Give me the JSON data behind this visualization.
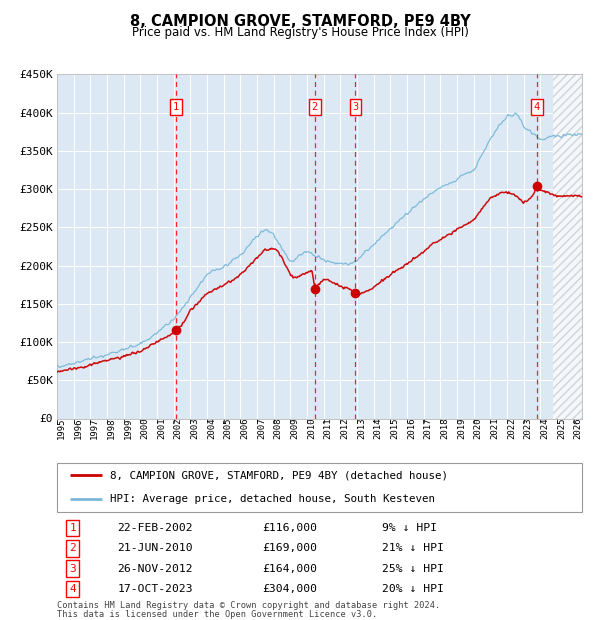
{
  "title": "8, CAMPION GROVE, STAMFORD, PE9 4BY",
  "subtitle": "Price paid vs. HM Land Registry's House Price Index (HPI)",
  "plot_bg_color": "#dce9f5",
  "hpi_line_color": "#7ab8d8",
  "price_line_color": "#cc0000",
  "marker_color": "#cc0000",
  "ylim": [
    0,
    450000
  ],
  "yticks": [
    0,
    50000,
    100000,
    150000,
    200000,
    250000,
    300000,
    350000,
    400000,
    450000
  ],
  "ytick_labels": [
    "£0",
    "£50K",
    "£100K",
    "£150K",
    "£200K",
    "£250K",
    "£300K",
    "£350K",
    "£400K",
    "£450K"
  ],
  "transactions": [
    {
      "num": 1,
      "date_label": "22-FEB-2002",
      "price": 116000,
      "year": 2002.13,
      "pct": "9%",
      "direction": "↓"
    },
    {
      "num": 2,
      "date_label": "21-JUN-2010",
      "price": 169000,
      "year": 2010.47,
      "pct": "21%",
      "direction": "↓"
    },
    {
      "num": 3,
      "date_label": "26-NOV-2012",
      "price": 164000,
      "year": 2012.9,
      "pct": "25%",
      "direction": "↓"
    },
    {
      "num": 4,
      "date_label": "17-OCT-2023",
      "price": 304000,
      "year": 2023.79,
      "pct": "20%",
      "direction": "↓"
    }
  ],
  "legend_label_price": "8, CAMPION GROVE, STAMFORD, PE9 4BY (detached house)",
  "legend_label_hpi": "HPI: Average price, detached house, South Kesteven",
  "footer_line1": "Contains HM Land Registry data © Crown copyright and database right 2024.",
  "footer_line2": "This data is licensed under the Open Government Licence v3.0.",
  "xmin": 1995.0,
  "xmax": 2026.5,
  "hatch_start": 2024.79,
  "hpi_keypoints": [
    [
      1995.0,
      68000
    ],
    [
      1996.0,
      72000
    ],
    [
      1997.0,
      78000
    ],
    [
      1998.0,
      83000
    ],
    [
      1999.0,
      90000
    ],
    [
      2000.0,
      98000
    ],
    [
      2001.0,
      112000
    ],
    [
      2002.0,
      130000
    ],
    [
      2003.0,
      158000
    ],
    [
      2004.0,
      188000
    ],
    [
      2005.0,
      198000
    ],
    [
      2006.0,
      213000
    ],
    [
      2007.0,
      238000
    ],
    [
      2007.5,
      248000
    ],
    [
      2008.0,
      240000
    ],
    [
      2008.5,
      222000
    ],
    [
      2009.0,
      205000
    ],
    [
      2009.5,
      212000
    ],
    [
      2010.0,
      218000
    ],
    [
      2010.5,
      212000
    ],
    [
      2011.0,
      207000
    ],
    [
      2011.5,
      205000
    ],
    [
      2012.0,
      202000
    ],
    [
      2012.5,
      201000
    ],
    [
      2013.0,
      206000
    ],
    [
      2013.5,
      218000
    ],
    [
      2014.0,
      228000
    ],
    [
      2014.5,
      238000
    ],
    [
      2015.0,
      248000
    ],
    [
      2015.5,
      258000
    ],
    [
      2016.0,
      268000
    ],
    [
      2016.5,
      278000
    ],
    [
      2017.0,
      287000
    ],
    [
      2017.5,
      295000
    ],
    [
      2018.0,
      302000
    ],
    [
      2018.5,
      307000
    ],
    [
      2019.0,
      312000
    ],
    [
      2019.5,
      320000
    ],
    [
      2020.0,
      325000
    ],
    [
      2020.5,
      345000
    ],
    [
      2021.0,
      365000
    ],
    [
      2021.5,
      382000
    ],
    [
      2022.0,
      395000
    ],
    [
      2022.5,
      398000
    ],
    [
      2022.8,
      392000
    ],
    [
      2023.0,
      382000
    ],
    [
      2023.5,
      372000
    ],
    [
      2024.0,
      365000
    ],
    [
      2024.5,
      368000
    ],
    [
      2025.0,
      370000
    ],
    [
      2026.0,
      371000
    ],
    [
      2026.5,
      372000
    ]
  ],
  "price_keypoints": [
    [
      1995.0,
      62000
    ],
    [
      1996.0,
      65000
    ],
    [
      1997.0,
      70000
    ],
    [
      1998.0,
      76000
    ],
    [
      1999.0,
      81000
    ],
    [
      2000.0,
      88000
    ],
    [
      2001.0,
      100000
    ],
    [
      2002.0,
      112000
    ],
    [
      2002.13,
      116000
    ],
    [
      2002.5,
      122000
    ],
    [
      2003.0,
      142000
    ],
    [
      2004.0,
      164000
    ],
    [
      2005.0,
      174000
    ],
    [
      2006.0,
      188000
    ],
    [
      2007.0,
      210000
    ],
    [
      2007.5,
      222000
    ],
    [
      2008.0,
      222000
    ],
    [
      2008.3,
      218000
    ],
    [
      2008.7,
      202000
    ],
    [
      2009.0,
      188000
    ],
    [
      2009.3,
      184000
    ],
    [
      2009.7,
      188000
    ],
    [
      2010.0,
      192000
    ],
    [
      2010.3,
      193000
    ],
    [
      2010.47,
      169000
    ],
    [
      2010.65,
      175000
    ],
    [
      2010.9,
      180000
    ],
    [
      2011.2,
      182000
    ],
    [
      2011.5,
      178000
    ],
    [
      2012.0,
      173000
    ],
    [
      2012.5,
      170000
    ],
    [
      2012.9,
      164000
    ],
    [
      2013.1,
      162000
    ],
    [
      2013.5,
      166000
    ],
    [
      2014.0,
      172000
    ],
    [
      2014.5,
      180000
    ],
    [
      2015.0,
      188000
    ],
    [
      2015.5,
      195000
    ],
    [
      2016.0,
      202000
    ],
    [
      2016.5,
      210000
    ],
    [
      2017.0,
      218000
    ],
    [
      2017.5,
      228000
    ],
    [
      2018.0,
      234000
    ],
    [
      2018.5,
      240000
    ],
    [
      2019.0,
      247000
    ],
    [
      2019.5,
      254000
    ],
    [
      2020.0,
      260000
    ],
    [
      2020.5,
      275000
    ],
    [
      2021.0,
      288000
    ],
    [
      2021.5,
      294000
    ],
    [
      2022.0,
      296000
    ],
    [
      2022.5,
      292000
    ],
    [
      2023.0,
      282000
    ],
    [
      2023.5,
      290000
    ],
    [
      2023.79,
      304000
    ],
    [
      2024.0,
      299000
    ],
    [
      2024.5,
      295000
    ],
    [
      2025.0,
      292000
    ],
    [
      2026.0,
      291000
    ],
    [
      2026.5,
      290000
    ]
  ]
}
